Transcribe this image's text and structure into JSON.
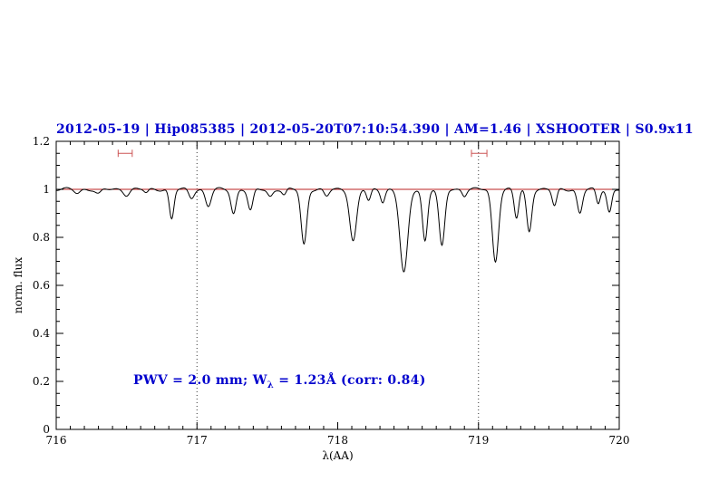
{
  "title": "2012-05-19 | Hip085385 | 2012-05-20T07:10:54.390 | AM=1.46 | XSHOOTER | S0.9x11",
  "annotation": {
    "prefix": "PWV = 2.0 mm; W",
    "subscript": "λ",
    "suffix": " = 1.23Å (corr: 0.84)"
  },
  "colors": {
    "title_text": "#0000cd",
    "annotation_text": "#0000cd",
    "continuum_line": "#bb2222",
    "marker": "#cc5555",
    "spectrum": "#000000",
    "axis": "#000000",
    "guide_line": "#333333"
  },
  "chart_data": {
    "type": "line",
    "title": "2012-05-19 | Hip085385 | 2012-05-20T07:10:54.390 | AM=1.46 | XSHOOTER | S0.9x11",
    "xlabel": "λ(AA)",
    "ylabel": "norm. flux",
    "xlim": [
      716,
      720
    ],
    "ylim": [
      0,
      1.2
    ],
    "x_ticks": [
      716,
      717,
      718,
      719,
      720
    ],
    "x_tick_labels": [
      "716",
      "717",
      "718",
      "719",
      "720"
    ],
    "y_ticks": [
      0,
      0.2,
      0.4,
      0.6,
      0.8,
      1,
      1.2
    ],
    "y_tick_labels": [
      "0",
      "0.2",
      "0.4",
      "0.6",
      "0.8",
      "1",
      "1.2"
    ],
    "x_minor_step": 0.1,
    "y_minor_step": 0.05,
    "grid": false,
    "legend": "none",
    "guide_lines_x": [
      717,
      719
    ],
    "continuum_level": 1.0,
    "range_markers": [
      {
        "x1": 716.44,
        "x2": 716.54,
        "y": 1.15
      },
      {
        "x1": 718.95,
        "x2": 719.06,
        "y": 1.15
      }
    ],
    "series_description": "observed normalized telluric spectrum = continuum(1.0) minus gaussian absorption lines [center_AA, depth, sigma_AA]",
    "absorption_lines": [
      [
        716.15,
        0.015,
        0.02
      ],
      [
        716.3,
        0.02,
        0.02
      ],
      [
        716.5,
        0.022,
        0.02
      ],
      [
        716.64,
        0.015,
        0.015
      ],
      [
        716.82,
        0.125,
        0.016
      ],
      [
        716.96,
        0.035,
        0.018
      ],
      [
        717.08,
        0.07,
        0.02
      ],
      [
        717.26,
        0.1,
        0.018
      ],
      [
        717.38,
        0.09,
        0.018
      ],
      [
        717.52,
        0.03,
        0.018
      ],
      [
        717.62,
        0.025,
        0.015
      ],
      [
        717.76,
        0.23,
        0.02
      ],
      [
        717.92,
        0.03,
        0.018
      ],
      [
        718.11,
        0.215,
        0.024
      ],
      [
        718.22,
        0.05,
        0.015
      ],
      [
        718.32,
        0.05,
        0.015
      ],
      [
        718.47,
        0.35,
        0.028
      ],
      [
        718.62,
        0.215,
        0.018
      ],
      [
        718.74,
        0.24,
        0.02
      ],
      [
        718.9,
        0.025,
        0.015
      ],
      [
        719.12,
        0.3,
        0.022
      ],
      [
        719.27,
        0.12,
        0.016
      ],
      [
        719.36,
        0.175,
        0.018
      ],
      [
        719.54,
        0.07,
        0.016
      ],
      [
        719.72,
        0.1,
        0.018
      ],
      [
        719.85,
        0.06,
        0.014
      ],
      [
        719.93,
        0.095,
        0.016
      ]
    ],
    "sample_step": 0.004,
    "annotation_text": "PWV = 2.0 mm; Wλ = 1.23Å (corr: 0.84)"
  }
}
